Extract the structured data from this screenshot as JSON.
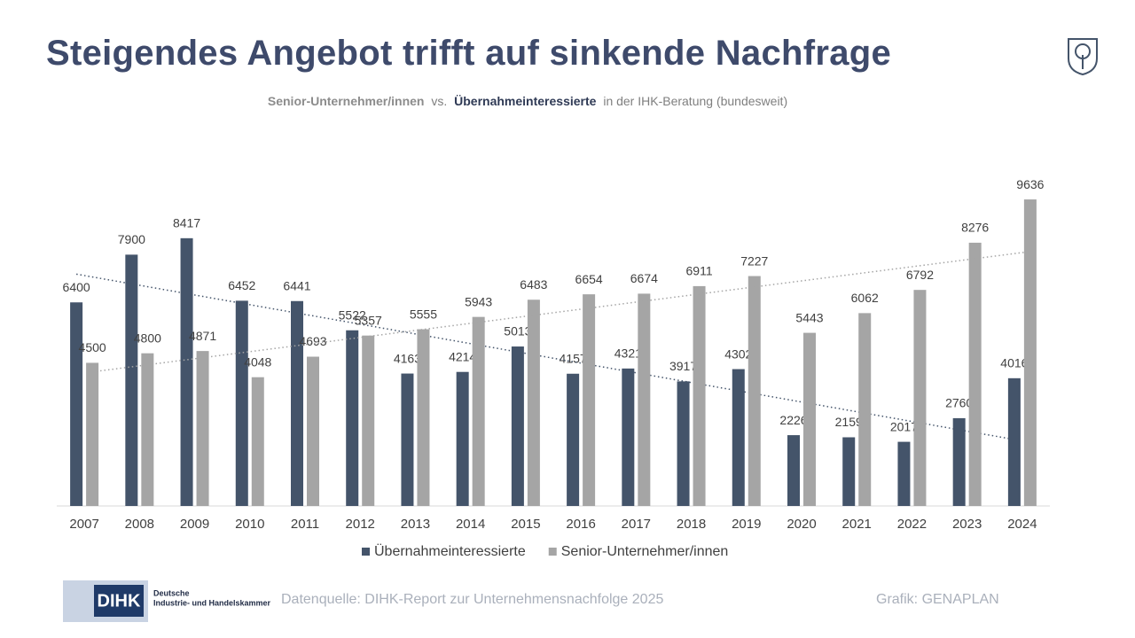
{
  "title": "Steigendes Angebot trifft auf sinkende Nachfrage",
  "subtitle": {
    "part1": "Senior-Unternehmer/innen",
    "part2": "vs.",
    "part3": "Übernahmeinteressierte",
    "part4": "in der IHK-Beratung (bundesweit)"
  },
  "chart_data": {
    "type": "bar",
    "categories": [
      "2007",
      "2008",
      "2009",
      "2010",
      "2011",
      "2012",
      "2013",
      "2014",
      "2015",
      "2016",
      "2017",
      "2018",
      "2019",
      "2020",
      "2021",
      "2022",
      "2023",
      "2024"
    ],
    "series": [
      {
        "name": "Übernahmeinteressierte",
        "color": "#44546a",
        "values": [
          6400,
          7900,
          8417,
          6452,
          6441,
          5522,
          4163,
          4214,
          5013,
          4157,
          4321,
          3917,
          4302,
          2226,
          2159,
          2017,
          2760,
          4016
        ]
      },
      {
        "name": "Senior-Unternehmer/innen",
        "color": "#a5a5a5",
        "values": [
          4500,
          4800,
          4871,
          4048,
          4693,
          5357,
          5555,
          5943,
          6483,
          6654,
          6674,
          6911,
          7227,
          5443,
          6062,
          6792,
          8276,
          9636
        ]
      }
    ],
    "ylim": [
      0,
      10000
    ],
    "trendline": true,
    "legend": "bottom"
  },
  "footer": {
    "logo": {
      "abbr": "DIHK",
      "line1": "Deutsche",
      "line2": "Industrie- und Handelskammer"
    },
    "source": "Datenquelle: DIHK-Report zur Unternehmensnachfolge 2025",
    "credit": "Grafik: GENAPLAN"
  }
}
